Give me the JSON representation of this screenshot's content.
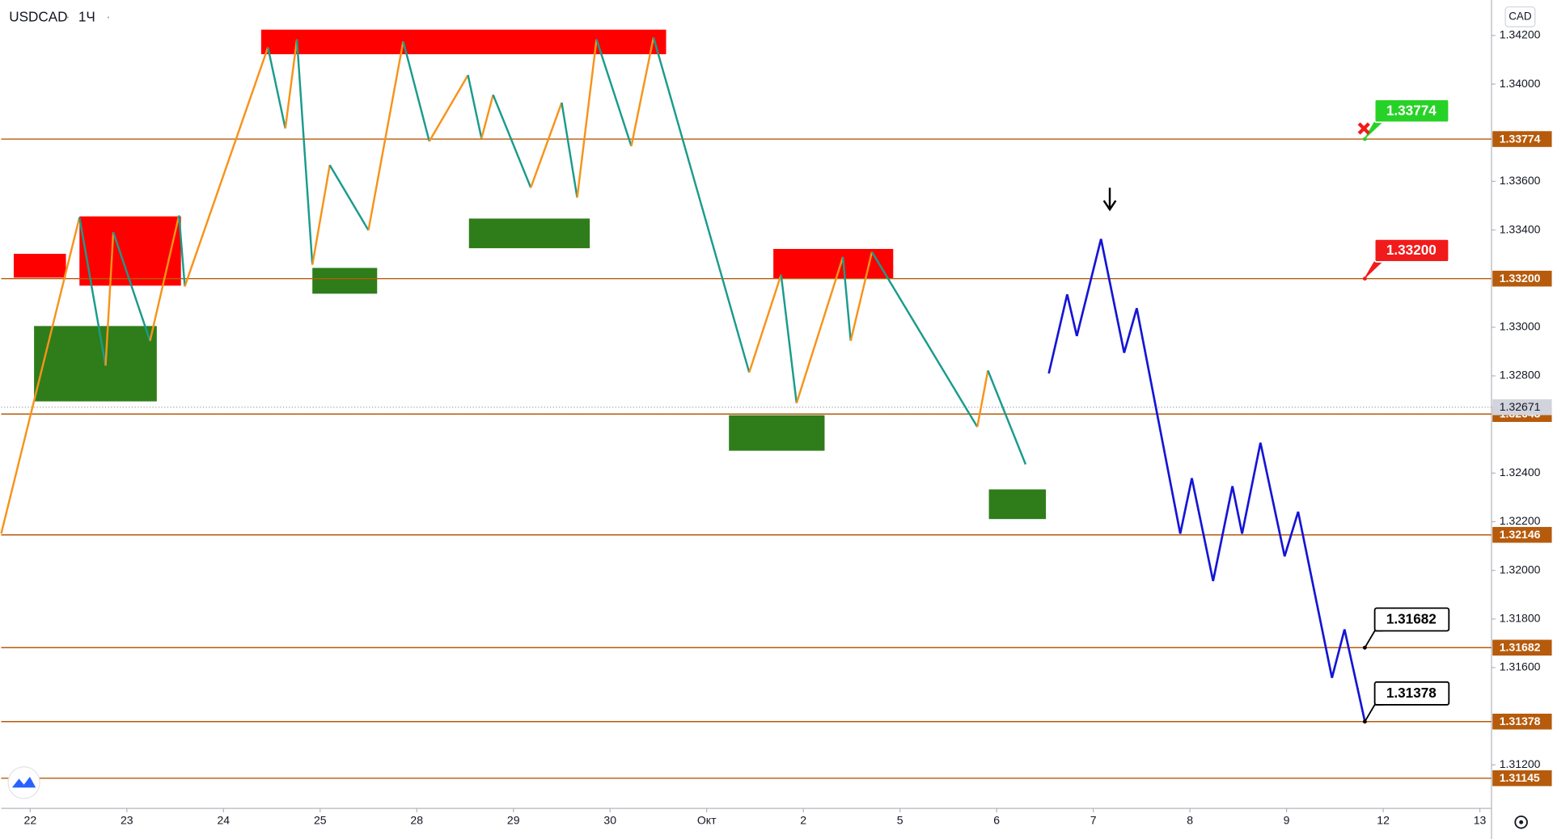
{
  "chart_data": {
    "type": "price-chart",
    "symbol": "USDCAD",
    "interval": "1Ч",
    "currency": "CAD",
    "grid": false,
    "xlim": [
      -0.3,
      15.1
    ],
    "ylim": [
      1.31021,
      1.34346
    ],
    "xticks": [
      {
        "value": 0,
        "label": "22"
      },
      {
        "value": 1,
        "label": "23"
      },
      {
        "value": 2,
        "label": "24"
      },
      {
        "value": 3,
        "label": "25"
      },
      {
        "value": 4,
        "label": "28"
      },
      {
        "value": 5,
        "label": "29"
      },
      {
        "value": 6,
        "label": "30"
      },
      {
        "value": 7,
        "label": "Окт"
      },
      {
        "value": 8,
        "label": "2"
      },
      {
        "value": 9,
        "label": "5"
      },
      {
        "value": 10,
        "label": "6"
      },
      {
        "value": 11,
        "label": "7"
      },
      {
        "value": 12,
        "label": "8"
      },
      {
        "value": 13,
        "label": "9"
      },
      {
        "value": 14,
        "label": "12"
      },
      {
        "value": 15,
        "label": "13"
      }
    ],
    "yticks": [
      {
        "value": 1.342,
        "label": "1.34200"
      },
      {
        "value": 1.34,
        "label": "1.34000"
      },
      {
        "value": 1.336,
        "label": "1.33600"
      },
      {
        "value": 1.334,
        "label": "1.33400"
      },
      {
        "value": 1.33,
        "label": "1.33000"
      },
      {
        "value": 1.328,
        "label": "1.32800"
      },
      {
        "value": 1.324,
        "label": "1.32400"
      },
      {
        "value": 1.322,
        "label": "1.32200"
      },
      {
        "value": 1.32,
        "label": "1.32000"
      },
      {
        "value": 1.318,
        "label": "1.31800"
      },
      {
        "value": 1.316,
        "label": "1.31600"
      },
      {
        "value": 1.312,
        "label": "1.31200"
      }
    ],
    "level_color": "#b65b0c",
    "levels": [
      1.33774,
      {
        "value": 1.332,
        "label": "1.33200"
      },
      1.32643,
      1.32146,
      1.31682,
      1.31378,
      1.31145
    ],
    "current_price": 1.32671,
    "zones": [
      {
        "color": "#ff0000",
        "x": [
          -0.17,
          0.37
        ],
        "y": [
          1.33204,
          1.33302
        ]
      },
      {
        "color": "#ff0000",
        "x": [
          0.51,
          1.56
        ],
        "y": [
          1.33171,
          1.33456
        ]
      },
      {
        "color": "#ff0000",
        "x": [
          2.39,
          6.58
        ],
        "y": [
          1.34123,
          1.34224
        ]
      },
      {
        "color": "#ff0000",
        "x": [
          7.69,
          8.93
        ],
        "y": [
          1.332,
          1.33322
        ]
      },
      {
        "color": "#2e7d1a",
        "x": [
          0.04,
          1.31
        ],
        "y": [
          1.32695,
          1.33005
        ]
      },
      {
        "color": "#2e7d1a",
        "x": [
          2.92,
          3.59
        ],
        "y": [
          1.33138,
          1.33244
        ]
      },
      {
        "color": "#2e7d1a",
        "x": [
          4.54,
          5.79
        ],
        "y": [
          1.33325,
          1.33447
        ]
      },
      {
        "color": "#2e7d1a",
        "x": [
          7.23,
          8.22
        ],
        "y": [
          1.32492,
          1.32638
        ]
      },
      {
        "color": "#2e7d1a",
        "x": [
          9.92,
          10.51
        ],
        "y": [
          1.32211,
          1.32333
        ]
      }
    ],
    "zigzag": {
      "up_color": "#f7931a",
      "down_color": "#1a9b8c",
      "x": [
        -0.3,
        0.51,
        0.78,
        0.86,
        1.24,
        1.54,
        1.6,
        2.46,
        2.64,
        2.76,
        2.92,
        3.1,
        3.5,
        3.86,
        4.13,
        4.53,
        4.67,
        4.79,
        5.18,
        5.5,
        5.66,
        5.86,
        6.22,
        6.45,
        7.44,
        7.77,
        7.93,
        8.41,
        8.49,
        8.71,
        9.8,
        9.91,
        10.3
      ],
      "values": [
        1.32151,
        1.33452,
        1.32842,
        1.33391,
        1.32944,
        1.3346,
        1.33168,
        1.34151,
        1.33818,
        1.34184,
        1.33257,
        1.33667,
        1.33399,
        1.34176,
        1.33765,
        1.34037,
        1.33777,
        1.33956,
        1.33574,
        1.33924,
        1.33533,
        1.34184,
        1.33745,
        1.34192,
        1.32814,
        1.33216,
        1.32688,
        1.33289,
        1.32944,
        1.3331,
        1.3259,
        1.32822,
        1.32436
      ]
    },
    "projection": {
      "color": "#1515d6",
      "x": [
        10.54,
        10.73,
        10.83,
        11.08,
        11.32,
        11.45,
        11.9,
        12.02,
        12.24,
        12.44,
        12.54,
        12.73,
        12.98,
        13.12,
        13.47,
        13.6,
        13.81
      ],
      "values": [
        1.3281,
        1.33135,
        1.32964,
        1.33363,
        1.32895,
        1.33078,
        1.32151,
        1.32379,
        1.31956,
        1.32346,
        1.32151,
        1.32525,
        1.32058,
        1.32241,
        1.31558,
        1.31757,
        1.31379
      ]
    },
    "targets": [
      {
        "x": 13.81,
        "value": 1.33774,
        "color": "#27d227"
      },
      {
        "x": 13.81,
        "value": {
          "value": 1.332,
          "label": "1.33200"
        },
        "color": "#f21b1b"
      },
      {
        "x": 13.81,
        "value": 1.31682,
        "color": "#000000"
      },
      {
        "x": 13.81,
        "value": 1.31378,
        "color": "#000000"
      }
    ]
  }
}
